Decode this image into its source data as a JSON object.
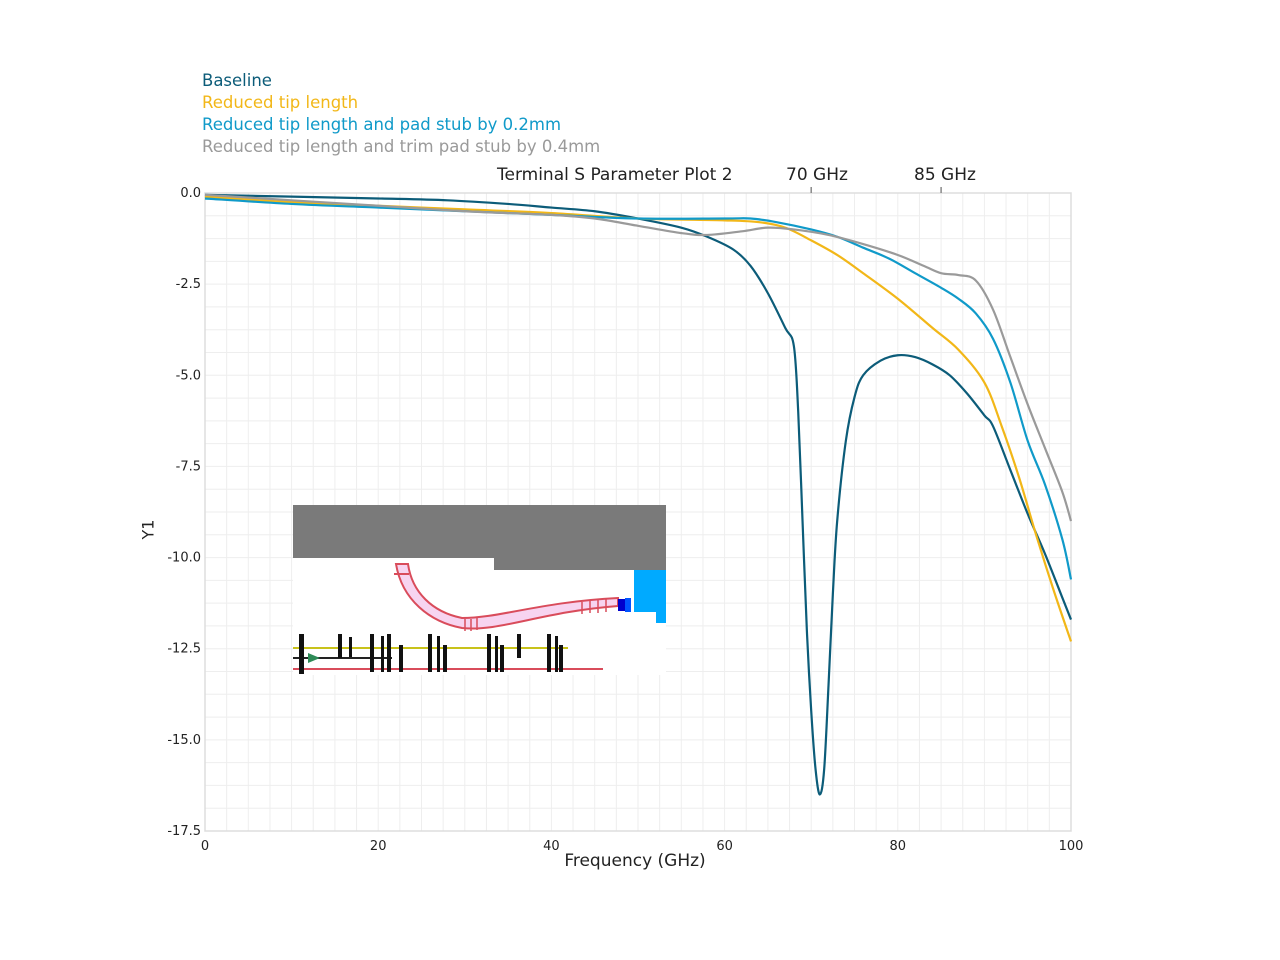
{
  "chart_data": {
    "type": "line",
    "title": "Terminal S Parameter Plot 2",
    "xlabel": "Frequency (GHz)",
    "ylabel": "Y1",
    "xlim": [
      0,
      100
    ],
    "ylim": [
      -17.5,
      0.0
    ],
    "x_ticks": [
      "0",
      "20",
      "40",
      "60",
      "80",
      "100"
    ],
    "y_ticks": [
      "0.0",
      "-2.5",
      "-5.0",
      "-7.5",
      "-10.0",
      "-12.5",
      "-15.0",
      "-17.5"
    ],
    "grid": true,
    "legend_position": "top-left",
    "markers": [
      {
        "label": "70 GHz",
        "x": 70
      },
      {
        "label": "85 GHz",
        "x": 85
      }
    ],
    "series": [
      {
        "name": "Baseline",
        "color": "#0c5c79",
        "points": [
          [
            0,
            -0.05
          ],
          [
            10,
            -0.1
          ],
          [
            20,
            -0.15
          ],
          [
            28,
            -0.2
          ],
          [
            35,
            -0.3
          ],
          [
            40,
            -0.4
          ],
          [
            45,
            -0.5
          ],
          [
            50,
            -0.7
          ],
          [
            55,
            -0.95
          ],
          [
            58,
            -1.2
          ],
          [
            61,
            -1.55
          ],
          [
            63,
            -2.0
          ],
          [
            65,
            -2.75
          ],
          [
            67,
            -3.7
          ],
          [
            68,
            -4.2
          ],
          [
            68.5,
            -6.0
          ],
          [
            69,
            -9.0
          ],
          [
            69.5,
            -12.0
          ],
          [
            70,
            -14.2
          ],
          [
            70.5,
            -15.8
          ],
          [
            71,
            -16.5
          ],
          [
            71.5,
            -15.8
          ],
          [
            72,
            -13.5
          ],
          [
            72.5,
            -11.0
          ],
          [
            73,
            -9.0
          ],
          [
            74,
            -6.8
          ],
          [
            75,
            -5.6
          ],
          [
            76,
            -5.0
          ],
          [
            78,
            -4.6
          ],
          [
            80,
            -4.45
          ],
          [
            82,
            -4.5
          ],
          [
            84,
            -4.7
          ],
          [
            86,
            -5.0
          ],
          [
            88,
            -5.5
          ],
          [
            90,
            -6.1
          ],
          [
            91,
            -6.4
          ],
          [
            93,
            -7.6
          ],
          [
            95,
            -8.8
          ],
          [
            97,
            -9.9
          ],
          [
            99,
            -11.1
          ],
          [
            100,
            -11.7
          ]
        ]
      },
      {
        "name": "Reduced tip length",
        "color": "#f2b718",
        "points": [
          [
            0,
            -0.1
          ],
          [
            10,
            -0.25
          ],
          [
            20,
            -0.35
          ],
          [
            30,
            -0.45
          ],
          [
            40,
            -0.55
          ],
          [
            50,
            -0.7
          ],
          [
            60,
            -0.75
          ],
          [
            64,
            -0.8
          ],
          [
            67,
            -0.95
          ],
          [
            70,
            -1.3
          ],
          [
            73,
            -1.7
          ],
          [
            76,
            -2.2
          ],
          [
            80,
            -2.9
          ],
          [
            84,
            -3.7
          ],
          [
            87,
            -4.3
          ],
          [
            90,
            -5.2
          ],
          [
            92,
            -6.4
          ],
          [
            94,
            -7.8
          ],
          [
            96,
            -9.4
          ],
          [
            98,
            -10.9
          ],
          [
            100,
            -12.3
          ]
        ]
      },
      {
        "name": "Reduced tip length and pad stub by 0.2mm",
        "color": "#109ac9",
        "points": [
          [
            0,
            -0.15
          ],
          [
            10,
            -0.3
          ],
          [
            20,
            -0.4
          ],
          [
            30,
            -0.5
          ],
          [
            40,
            -0.6
          ],
          [
            50,
            -0.7
          ],
          [
            60,
            -0.7
          ],
          [
            63,
            -0.7
          ],
          [
            66,
            -0.8
          ],
          [
            70,
            -1.0
          ],
          [
            73,
            -1.2
          ],
          [
            76,
            -1.5
          ],
          [
            79,
            -1.8
          ],
          [
            82,
            -2.2
          ],
          [
            85,
            -2.6
          ],
          [
            87,
            -2.9
          ],
          [
            89,
            -3.3
          ],
          [
            91,
            -4.0
          ],
          [
            93,
            -5.2
          ],
          [
            95,
            -6.8
          ],
          [
            97,
            -8.0
          ],
          [
            99,
            -9.5
          ],
          [
            100,
            -10.6
          ]
        ]
      },
      {
        "name": "Reduced tip length and trim pad stub by 0.4mm",
        "color": "#9a9a9a",
        "points": [
          [
            0,
            -0.05
          ],
          [
            10,
            -0.2
          ],
          [
            20,
            -0.35
          ],
          [
            30,
            -0.5
          ],
          [
            40,
            -0.6
          ],
          [
            45,
            -0.7
          ],
          [
            50,
            -0.9
          ],
          [
            55,
            -1.1
          ],
          [
            58,
            -1.15
          ],
          [
            62,
            -1.05
          ],
          [
            65,
            -0.95
          ],
          [
            68,
            -1.0
          ],
          [
            72,
            -1.15
          ],
          [
            76,
            -1.4
          ],
          [
            80,
            -1.7
          ],
          [
            83,
            -2.0
          ],
          [
            85,
            -2.2
          ],
          [
            87,
            -2.25
          ],
          [
            89,
            -2.4
          ],
          [
            91,
            -3.2
          ],
          [
            93,
            -4.5
          ],
          [
            95,
            -5.8
          ],
          [
            97,
            -7.0
          ],
          [
            99,
            -8.2
          ],
          [
            100,
            -9.0
          ]
        ]
      }
    ]
  }
}
